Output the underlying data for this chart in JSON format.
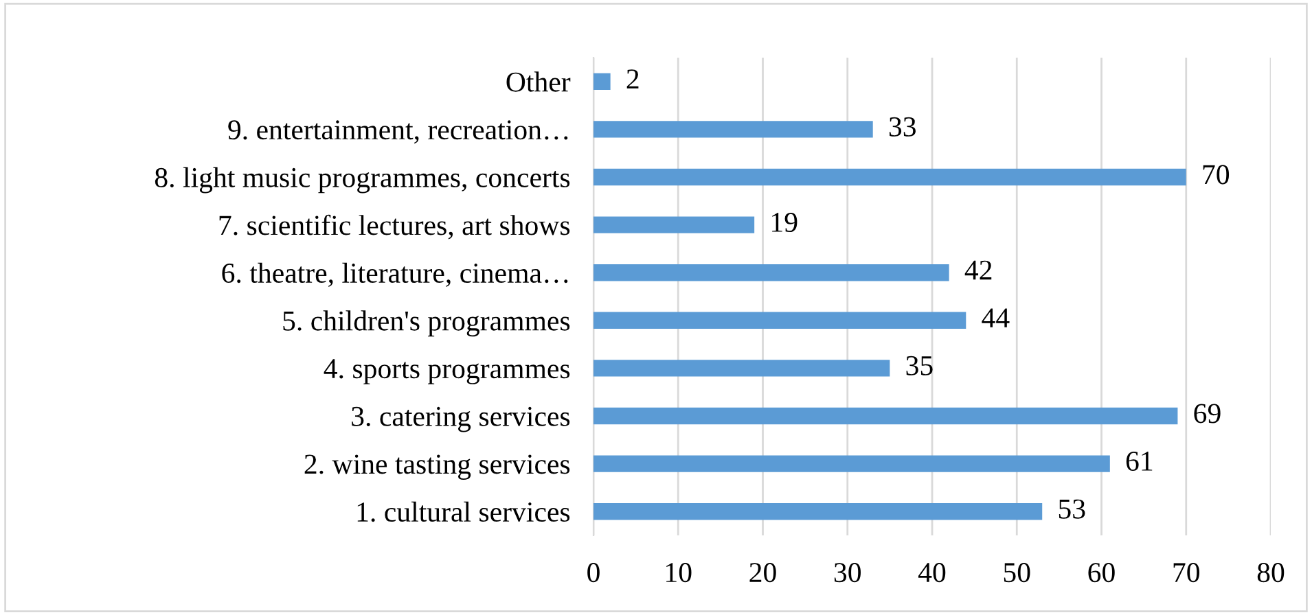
{
  "chart_data": {
    "type": "bar",
    "orientation": "horizontal",
    "categories": [
      "Other",
      "9. entertainment, recreation…",
      "8. light music programmes, concerts",
      "7. scientific lectures, art shows",
      "6. theatre, literature, cinema…",
      "5. children's programmes",
      "4. sports programmes",
      "3. catering services",
      "2. wine tasting services",
      "1. cultural services"
    ],
    "values": [
      2,
      33,
      70,
      19,
      42,
      44,
      35,
      69,
      61,
      53
    ],
    "color": "#5b9bd5",
    "xlim": [
      0,
      80
    ],
    "xticks": [
      0,
      10,
      20,
      30,
      40,
      50,
      60,
      70,
      80
    ],
    "grid": "x",
    "data_labels": true
  }
}
